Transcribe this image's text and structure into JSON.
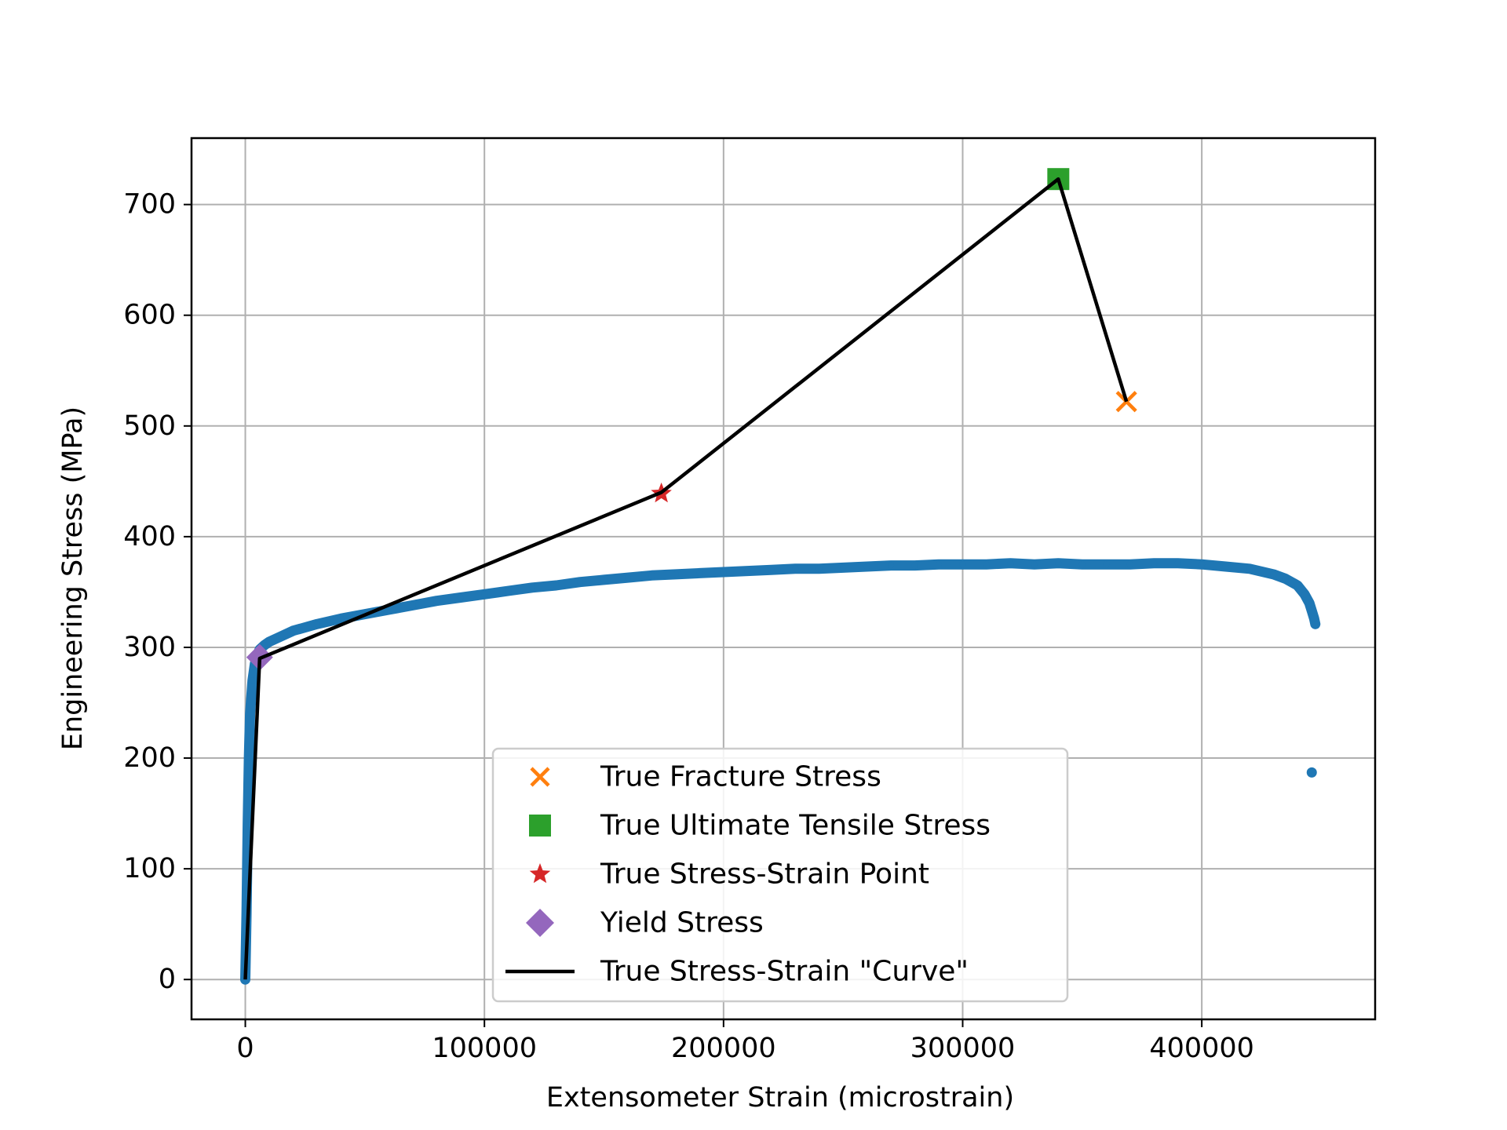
{
  "chart_data": {
    "type": "scatter",
    "xlabel": "Extensometer Strain (microstrain)",
    "ylabel": "Engineering Stress (MPa)",
    "xlim": [
      -22500,
      472500
    ],
    "ylim": [
      -36,
      760
    ],
    "x_ticks": [
      0,
      100000,
      200000,
      300000,
      400000
    ],
    "x_tick_labels": [
      "0",
      "100000",
      "200000",
      "300000",
      "400000"
    ],
    "y_ticks": [
      0,
      100,
      200,
      300,
      400,
      500,
      600,
      700
    ],
    "y_tick_labels": [
      "0",
      "100",
      "200",
      "300",
      "400",
      "500",
      "600",
      "700"
    ],
    "grid": true,
    "legend_placement": "lower center",
    "colors": {
      "data": "#1f77b4",
      "fracture": "#ff7f0e",
      "uts": "#2ca02c",
      "true_point": "#d62728",
      "yield": "#9467bd",
      "curve": "#000000",
      "grid": "#b0b0b0"
    },
    "engineering_curve": {
      "x": [
        0,
        500,
        1000,
        1500,
        2000,
        3000,
        4000,
        5000,
        6000,
        8000,
        10000,
        15000,
        20000,
        30000,
        40000,
        50000,
        60000,
        70000,
        80000,
        90000,
        100000,
        110000,
        120000,
        130000,
        140000,
        150000,
        160000,
        170000,
        180000,
        190000,
        200000,
        210000,
        220000,
        230000,
        240000,
        250000,
        260000,
        270000,
        280000,
        290000,
        300000,
        310000,
        320000,
        330000,
        340000,
        350000,
        360000,
        370000,
        380000,
        390000,
        400000,
        410000,
        420000,
        430000,
        435000,
        440000,
        443000,
        445000,
        446000,
        447000,
        447500
      ],
      "y": [
        0,
        60,
        140,
        200,
        240,
        270,
        285,
        293,
        298,
        302,
        305,
        310,
        315,
        321,
        326,
        330,
        334,
        338,
        342,
        345,
        348,
        351,
        354,
        356,
        359,
        361,
        363,
        365,
        366,
        367,
        368,
        369,
        370,
        371,
        371,
        372,
        373,
        374,
        374,
        375,
        375,
        375,
        376,
        375,
        376,
        375,
        375,
        375,
        376,
        376,
        375,
        373,
        371,
        366,
        362,
        356,
        348,
        340,
        333,
        326,
        321
      ]
    },
    "outlier_point": {
      "x": 446000,
      "y": 187
    },
    "true_curve": {
      "x": [
        0,
        6000,
        174000,
        340000,
        368500
      ],
      "y": [
        0,
        290,
        440,
        723,
        522
      ]
    },
    "yield_stress": {
      "x": 6000,
      "y": 291
    },
    "true_point": {
      "x": 174000,
      "y": 439
    },
    "true_uts": {
      "x": 340000,
      "y": 723
    },
    "true_fracture": {
      "x": 368500,
      "y": 522
    }
  },
  "legend": {
    "fracture": "True Fracture Stress",
    "uts": "True Ultimate Tensile Stress",
    "true_point": "True Stress-Strain Point",
    "yield": "Yield Stress",
    "curve": "True Stress-Strain \"Curve\""
  }
}
